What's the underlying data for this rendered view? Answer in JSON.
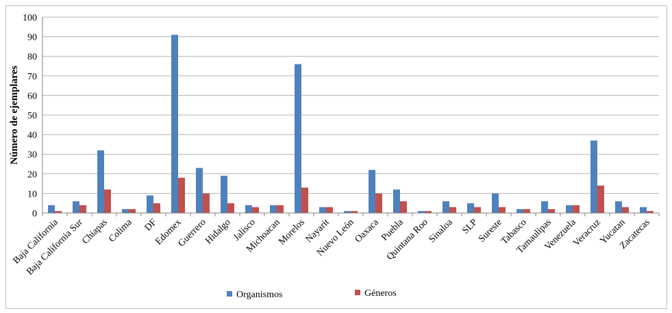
{
  "chart_data": {
    "type": "bar",
    "title": "",
    "xlabel": "",
    "ylabel": "Número de ejemplares",
    "ylim": [
      0,
      100
    ],
    "yticks": [
      0,
      10,
      20,
      30,
      40,
      50,
      60,
      70,
      80,
      90,
      100
    ],
    "grid": "horizontal",
    "legend_position": "bottom",
    "categories": [
      "Baja California",
      "Baja California Sur",
      "Chiapas",
      "Colima",
      "DF",
      "Edomex",
      "Guerrero",
      "Hidalgo",
      "Jalisco",
      "Michoacan",
      "Morelos",
      "Nayarit",
      "Nuevo León",
      "Oaxaca",
      "Puebla",
      "Quintana Roo",
      "Sinaloa",
      "SLP",
      "Sureste",
      "Tabasco",
      "Tamaulipas",
      "Venezuela",
      "Veracruz",
      "Yucatan",
      "Zacatecas"
    ],
    "series": [
      {
        "name": "Organismos",
        "color": "#4F81BD",
        "values": [
          4,
          6,
          32,
          2,
          9,
          91,
          23,
          19,
          4,
          4,
          76,
          3,
          1,
          22,
          12,
          1,
          6,
          5,
          10,
          2,
          6,
          4,
          37,
          6,
          3
        ]
      },
      {
        "name": "Géneros",
        "color": "#C0504D",
        "values": [
          1,
          4,
          12,
          2,
          5,
          18,
          10,
          5,
          3,
          4,
          13,
          3,
          1,
          10,
          6,
          1,
          3,
          3,
          3,
          2,
          2,
          4,
          14,
          3,
          1
        ]
      }
    ]
  }
}
